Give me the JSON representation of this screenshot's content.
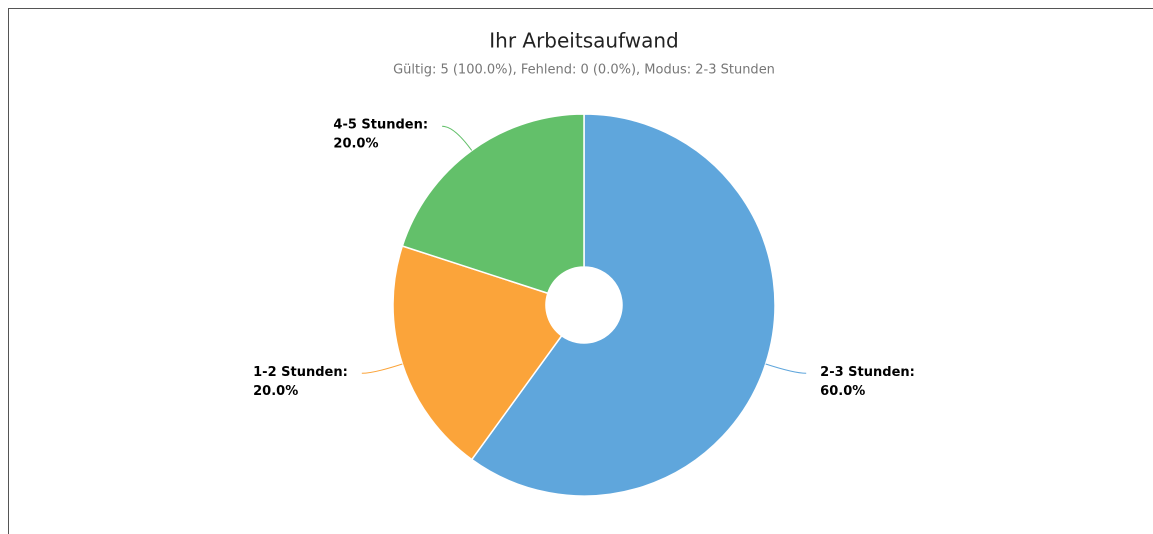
{
  "chart_data": {
    "type": "pie",
    "title": "Ihr Arbeitsaufwand",
    "subtitle": "Gültig: 5 (100.0%), Fehlend: 0 (0.0%), Modus: 2-3 Stunden",
    "categories": [
      "2-3 Stunden:",
      "1-2 Stunden:",
      "4-5 Stunden:"
    ],
    "values": [
      60,
      20,
      20
    ],
    "value_labels": [
      "60.0%",
      "20.0%",
      "20.0%"
    ],
    "colors": [
      "#5fa6dc",
      "#fba43a",
      "#63c06a"
    ]
  }
}
